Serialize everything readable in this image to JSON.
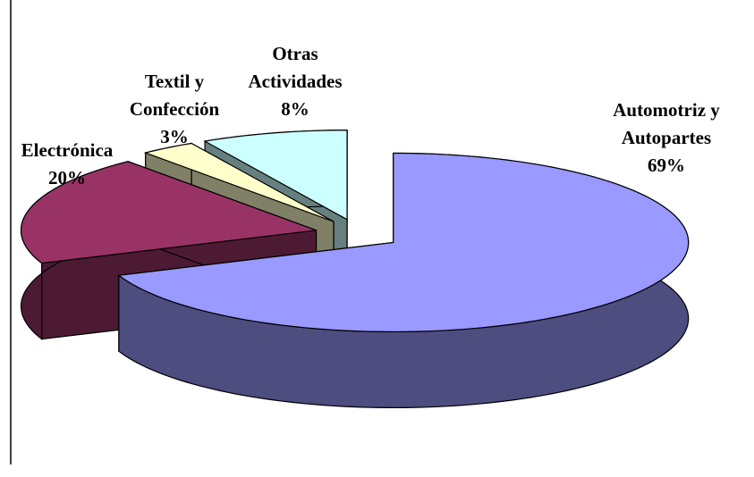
{
  "chart_data": {
    "type": "pie3d",
    "categories": [
      [
        "Automotriz y",
        "Autopartes"
      ],
      [
        "Electrónica"
      ],
      [
        "Textil y",
        "Confección"
      ],
      [
        "Otras",
        "Actividades"
      ]
    ],
    "values": [
      69,
      20,
      3,
      8
    ],
    "value_labels": [
      "69%",
      "20%",
      "3%",
      "8%"
    ],
    "colors": [
      "#9999ff",
      "#993366",
      "#ffffcc",
      "#ccffff"
    ]
  }
}
